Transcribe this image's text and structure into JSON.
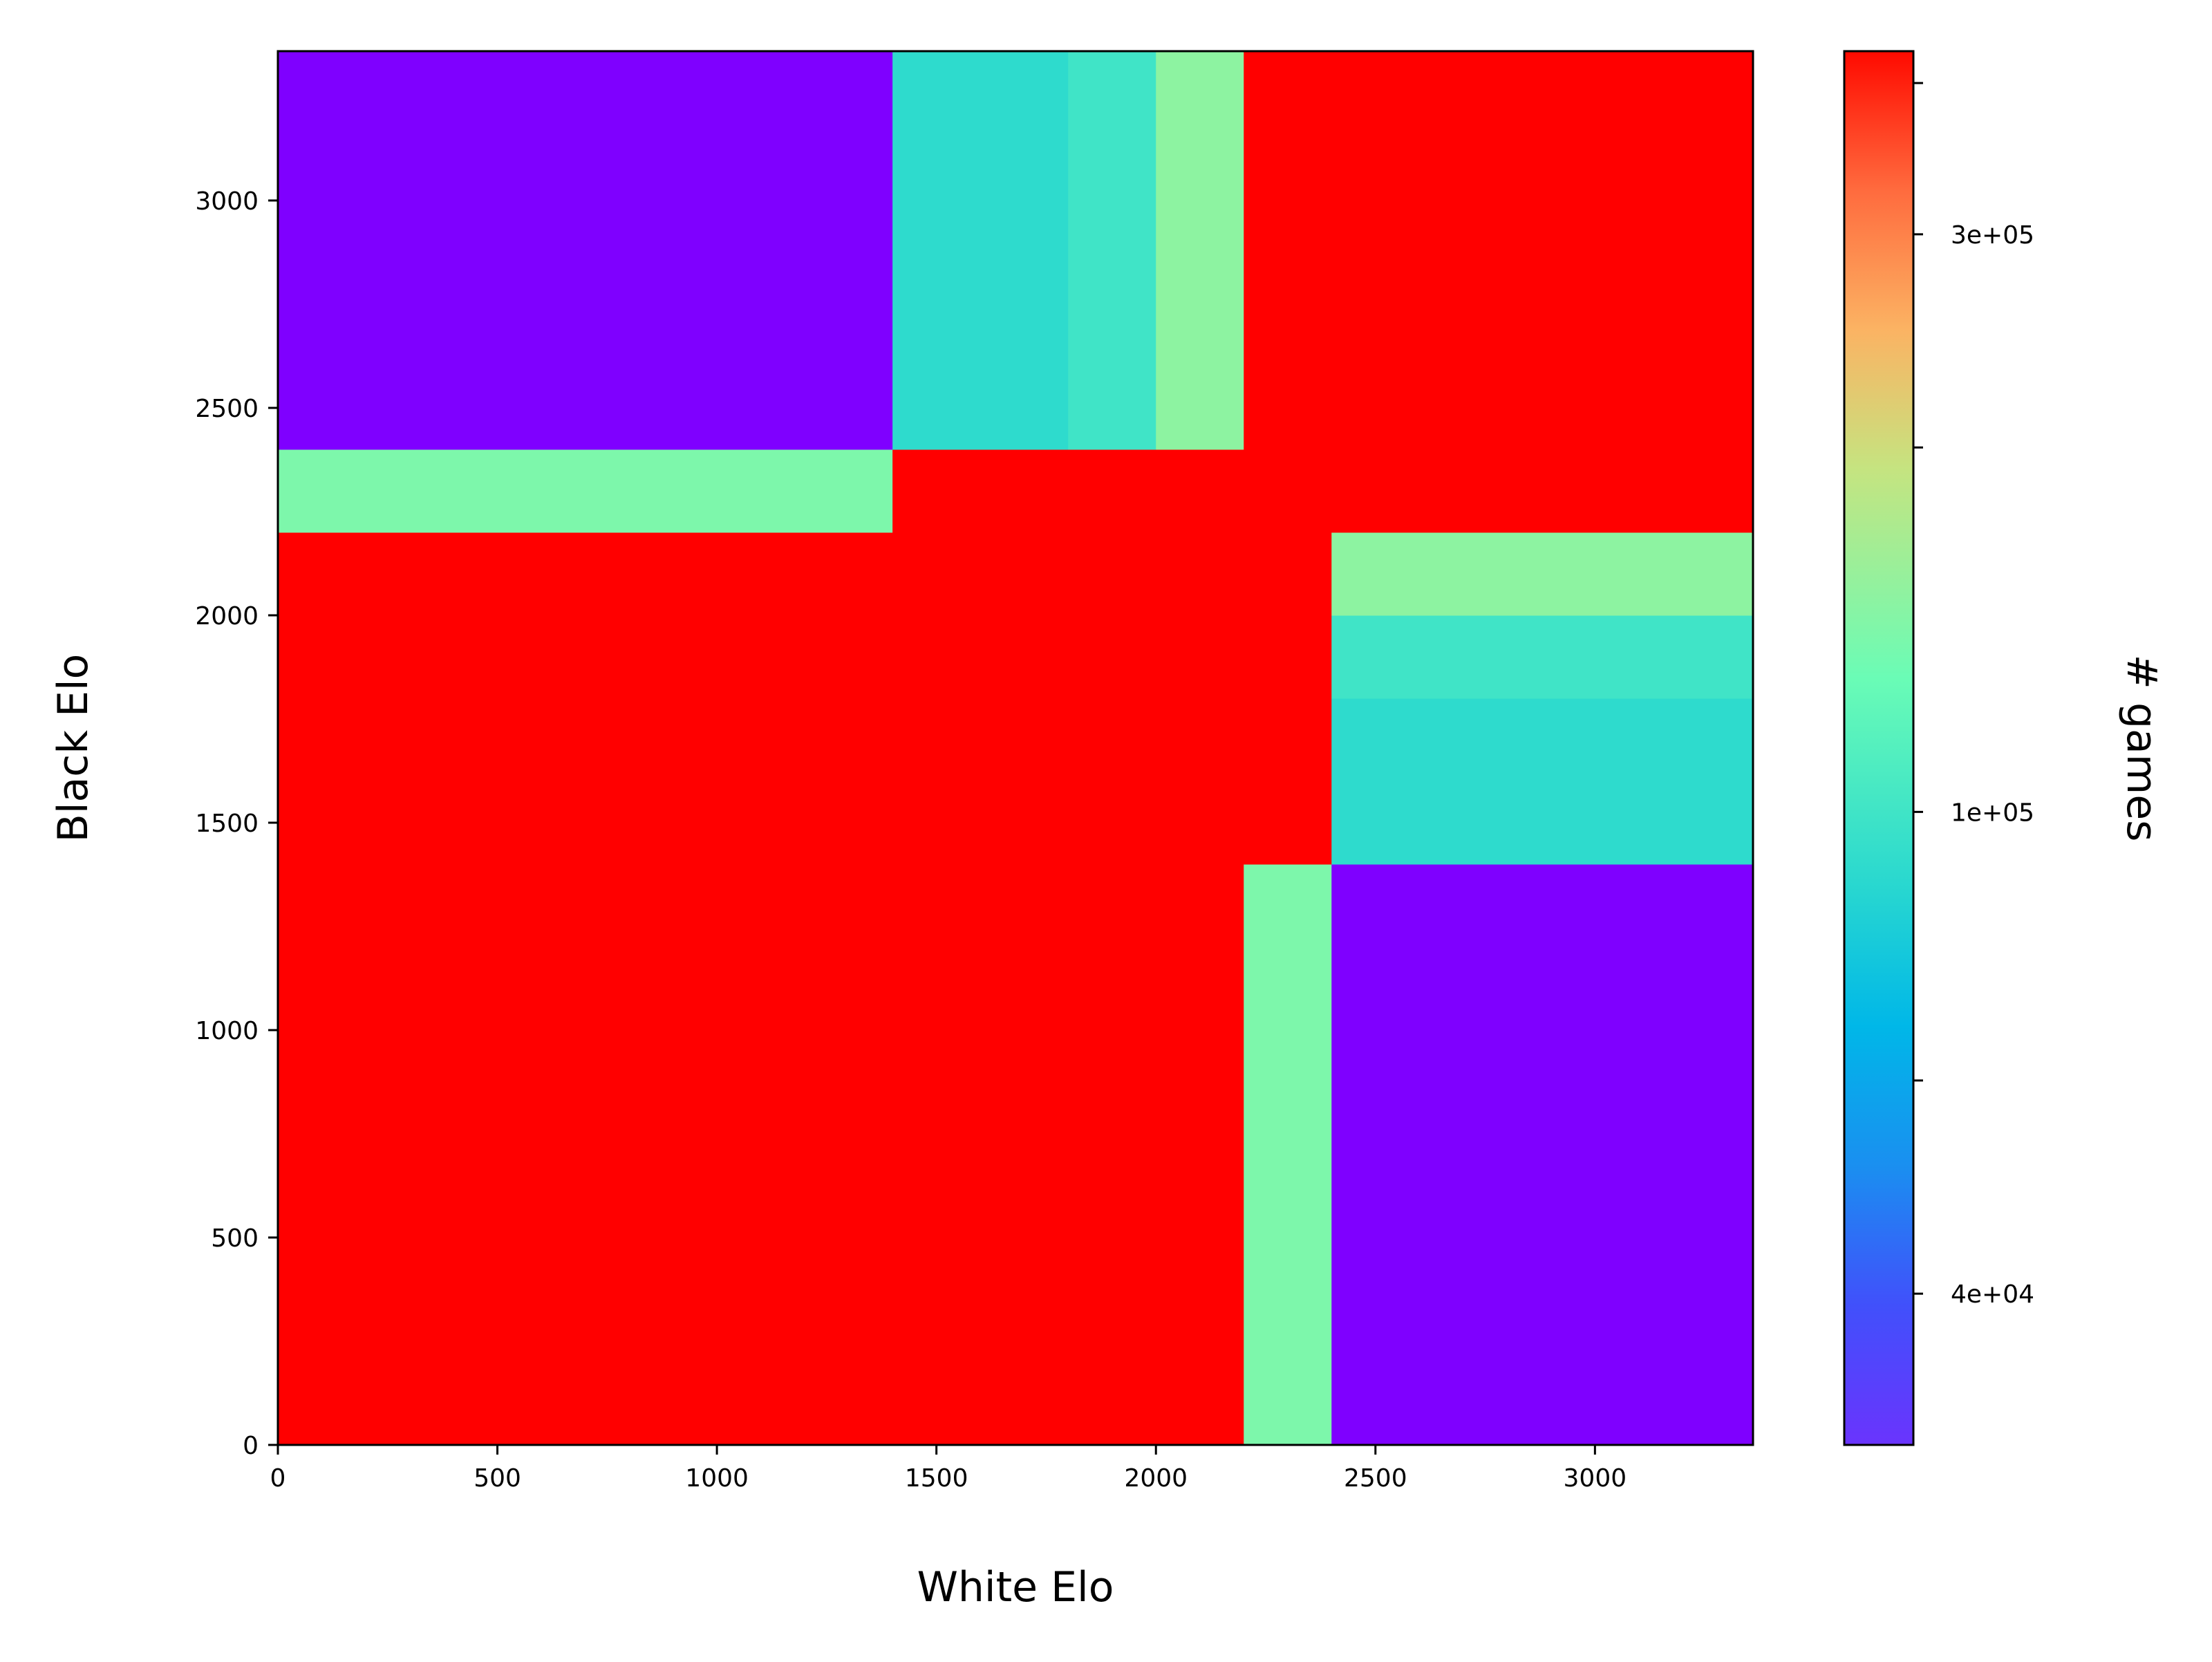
{
  "chart_data": {
    "type": "heatmap",
    "title": "",
    "xlabel": "White Elo",
    "ylabel": "Black Elo",
    "colorbar_label": "# games",
    "colormap": "rainbow",
    "xlim": [
      0,
      3360
    ],
    "ylim": [
      0,
      3360
    ],
    "x_ticks": [
      0,
      500,
      1000,
      1500,
      2000,
      2500,
      3000
    ],
    "y_ticks": [
      0,
      500,
      1000,
      1500,
      2000,
      2500,
      3000
    ],
    "x_tick_labels": [
      "0",
      "500",
      "1000",
      "1500",
      "2000",
      "2500",
      "3000"
    ],
    "y_tick_labels": [
      "0",
      "500",
      "1000",
      "1500",
      "2000",
      "2500",
      "3000"
    ],
    "colorbar": {
      "scale": "log",
      "range": [
        30000,
        425000
      ],
      "labeled_ticks": [
        {
          "value": 40000,
          "label": "4e+04"
        },
        {
          "value": 100000,
          "label": "1e+05"
        },
        {
          "value": 300000,
          "label": "3e+05"
        }
      ],
      "minor_ticks": [
        60000,
        200000,
        400000
      ]
    },
    "x_edges": [
      0,
      1400,
      1800,
      2000,
      2200,
      2400,
      3360
    ],
    "y_edges": [
      0,
      1400,
      1800,
      2000,
      2200,
      2400,
      3360
    ],
    "values": [
      [
        425000,
        425000,
        425000,
        425000,
        140000,
        30000
      ],
      [
        425000,
        425000,
        425000,
        425000,
        425000,
        90000
      ],
      [
        425000,
        425000,
        425000,
        425000,
        425000,
        100000
      ],
      [
        425000,
        425000,
        425000,
        425000,
        425000,
        150000
      ],
      [
        140000,
        425000,
        425000,
        425000,
        425000,
        425000
      ],
      [
        30000,
        90000,
        100000,
        150000,
        425000,
        425000
      ]
    ],
    "grid": false,
    "legend": "colorbar-right"
  }
}
